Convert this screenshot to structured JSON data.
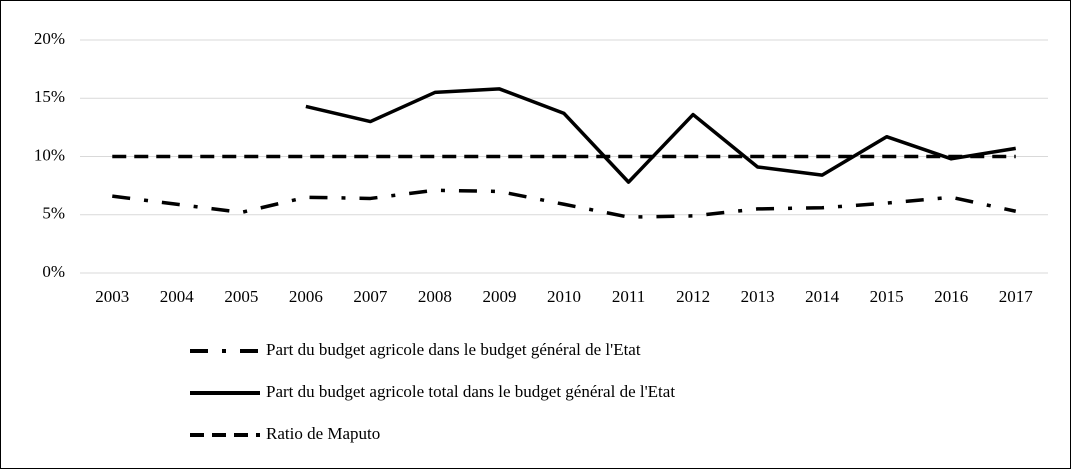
{
  "chart_data": {
    "type": "line",
    "categories": [
      "2003",
      "2004",
      "2005",
      "2006",
      "2007",
      "2008",
      "2009",
      "2010",
      "2011",
      "2012",
      "2013",
      "2014",
      "2015",
      "2016",
      "2017"
    ],
    "series": [
      {
        "name": "Part du budget agricole dans le budget général de l'Etat",
        "color": "#000000",
        "style": "dashdot",
        "values": [
          6.6,
          5.9,
          5.2,
          6.5,
          6.4,
          7.1,
          7.0,
          5.9,
          4.8,
          4.9,
          5.5,
          5.6,
          6.0,
          6.5,
          5.3
        ]
      },
      {
        "name": "Part du budget agricole total dans le budget général de l'Etat",
        "color": "#000000",
        "style": "solid",
        "values": [
          null,
          null,
          null,
          14.3,
          13.0,
          15.5,
          15.8,
          13.7,
          7.8,
          13.6,
          9.1,
          8.4,
          11.7,
          9.8,
          10.7
        ]
      },
      {
        "name": "Ratio de Maputo",
        "color": "#000000",
        "style": "dashed",
        "values": [
          10,
          10,
          10,
          10,
          10,
          10,
          10,
          10,
          10,
          10,
          10,
          10,
          10,
          10,
          10
        ]
      }
    ],
    "ylim": [
      0,
      20
    ],
    "yticks": [
      {
        "value": 0,
        "label": "0%"
      },
      {
        "value": 5,
        "label": "5%"
      },
      {
        "value": 10,
        "label": "10%"
      },
      {
        "value": 15,
        "label": "15%"
      },
      {
        "value": 20,
        "label": "20%"
      }
    ],
    "grid": true,
    "legend": "bottom"
  }
}
